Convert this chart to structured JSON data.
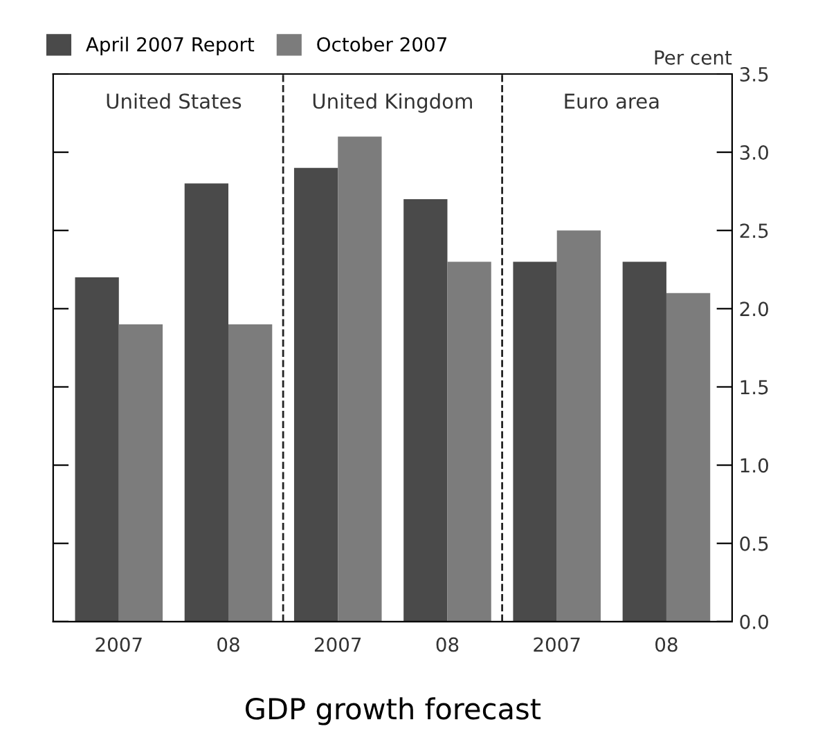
{
  "chart_data": {
    "type": "bar",
    "title": "GDP growth forecast",
    "ylabel": "Per cent",
    "categories": [
      "2007",
      "08",
      "2007",
      "08",
      "2007",
      "08"
    ],
    "series": [
      {
        "name": "April 2007 Report",
        "color": "#4a4a4a",
        "values": [
          2.2,
          2.8,
          2.9,
          2.7,
          2.3,
          2.3
        ]
      },
      {
        "name": "October 2007",
        "color": "#7c7c7c",
        "values": [
          1.9,
          1.9,
          3.1,
          2.3,
          2.5,
          2.1
        ]
      }
    ],
    "annotations": [
      "United States",
      "United Kingdom",
      "Euro area"
    ],
    "ylim": [
      0,
      3.5
    ],
    "yticks": [
      {
        "value": 0,
        "label": "0.0"
      },
      0.5,
      {
        "value": 1,
        "label": "1.0"
      },
      1.5,
      {
        "value": 2,
        "label": "2.0"
      },
      2.5,
      {
        "value": 3,
        "label": "3.0"
      },
      3.5
    ],
    "grid": false,
    "legend": "top left"
  }
}
